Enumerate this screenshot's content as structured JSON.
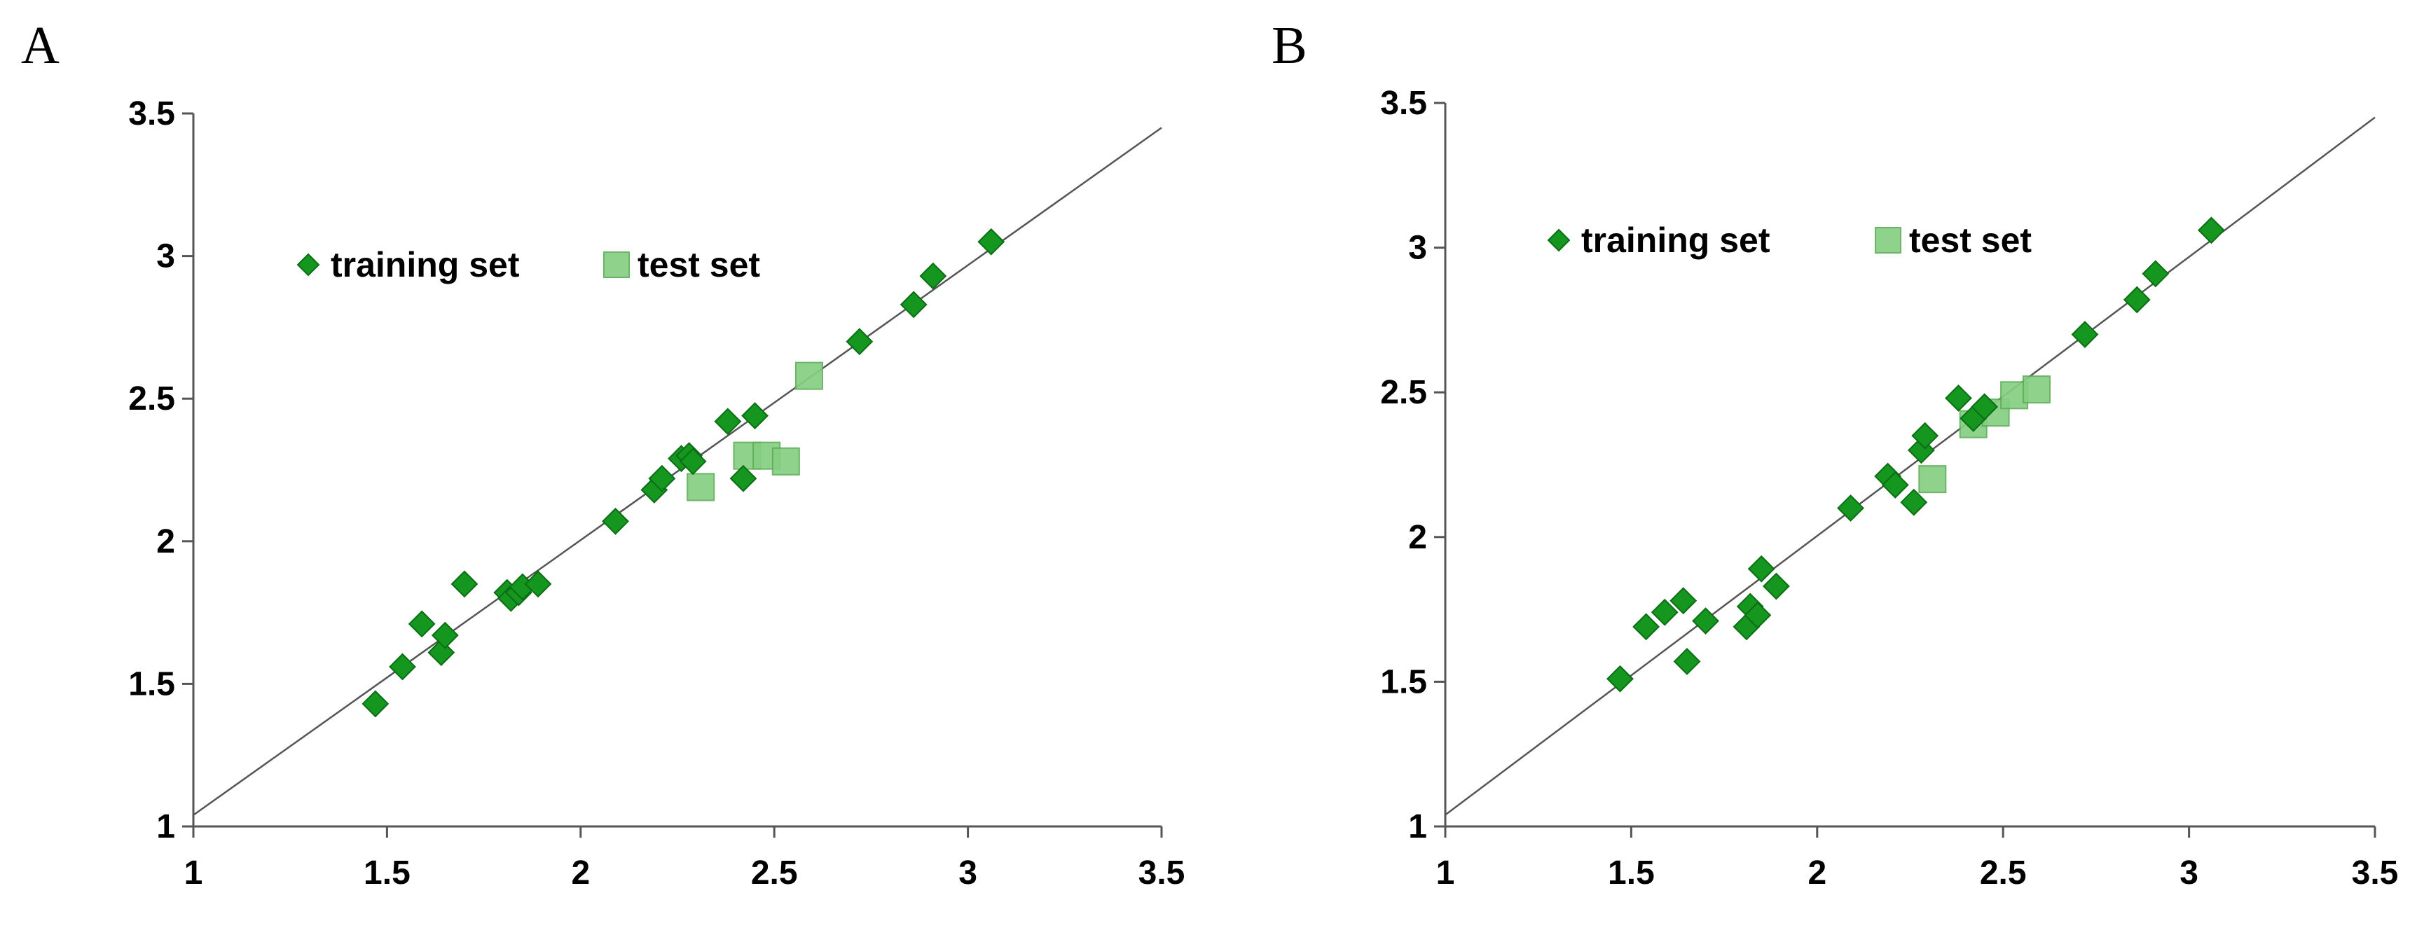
{
  "colors": {
    "training": "#15961f",
    "training_dark": "#0b6e14",
    "test": "#86cf82",
    "test_dark": "#5fae5c",
    "axis": "#555555",
    "fit_line": "#555555"
  },
  "icons": {
    "training": "diamond-icon",
    "test": "square-icon"
  },
  "chart_data": [
    {
      "panel_label": "A",
      "type": "scatter",
      "title": "",
      "xlabel": "",
      "ylabel": "",
      "xlim": [
        1,
        3.5
      ],
      "ylim": [
        1,
        3.5
      ],
      "xticks": [
        "1",
        "1.5",
        "2",
        "2.5",
        "3",
        "3.5"
      ],
      "yticks": [
        "1",
        "1.5",
        "2",
        "2.5",
        "3",
        "3.5"
      ],
      "grid": false,
      "legend_position": "upper-left",
      "reference_line": {
        "x": [
          1,
          3.5
        ],
        "y": [
          1.04,
          3.45
        ]
      },
      "series": [
        {
          "name": "training set",
          "marker": "diamond",
          "points": [
            [
              1.47,
              1.43
            ],
            [
              1.54,
              1.56
            ],
            [
              1.59,
              1.71
            ],
            [
              1.64,
              1.61
            ],
            [
              1.65,
              1.67
            ],
            [
              1.7,
              1.85
            ],
            [
              1.81,
              1.82
            ],
            [
              1.82,
              1.8
            ],
            [
              1.84,
              1.82
            ],
            [
              1.85,
              1.84
            ],
            [
              1.89,
              1.85
            ],
            [
              2.09,
              2.07
            ],
            [
              2.19,
              2.18
            ],
            [
              2.21,
              2.22
            ],
            [
              2.26,
              2.29
            ],
            [
              2.28,
              2.3
            ],
            [
              2.29,
              2.28
            ],
            [
              2.38,
              2.42
            ],
            [
              2.42,
              2.22
            ],
            [
              2.45,
              2.44
            ],
            [
              2.72,
              2.7
            ],
            [
              2.86,
              2.83
            ],
            [
              2.91,
              2.93
            ],
            [
              3.06,
              3.05
            ]
          ]
        },
        {
          "name": "test set",
          "marker": "square",
          "points": [
            [
              2.31,
              2.19
            ],
            [
              2.43,
              2.3
            ],
            [
              2.48,
              2.3
            ],
            [
              2.53,
              2.28
            ],
            [
              2.59,
              2.58
            ]
          ]
        }
      ]
    },
    {
      "panel_label": "B",
      "type": "scatter",
      "title": "",
      "xlabel": "",
      "ylabel": "",
      "xlim": [
        1,
        3.5
      ],
      "ylim": [
        1,
        3.5
      ],
      "xticks": [
        "1",
        "1.5",
        "2",
        "2.5",
        "3",
        "3.5"
      ],
      "yticks": [
        "1",
        "1.5",
        "2",
        "2.5",
        "3",
        "3.5"
      ],
      "grid": false,
      "legend_position": "upper-left",
      "reference_line": {
        "x": [
          1,
          3.5
        ],
        "y": [
          1.04,
          3.45
        ]
      },
      "series": [
        {
          "name": "training set",
          "marker": "diamond",
          "points": [
            [
              1.47,
              1.51
            ],
            [
              1.54,
              1.69
            ],
            [
              1.59,
              1.74
            ],
            [
              1.64,
              1.78
            ],
            [
              1.65,
              1.57
            ],
            [
              1.7,
              1.71
            ],
            [
              1.81,
              1.69
            ],
            [
              1.82,
              1.76
            ],
            [
              1.84,
              1.73
            ],
            [
              1.85,
              1.89
            ],
            [
              1.89,
              1.83
            ],
            [
              2.09,
              2.1
            ],
            [
              2.19,
              2.21
            ],
            [
              2.21,
              2.18
            ],
            [
              2.26,
              2.12
            ],
            [
              2.28,
              2.3
            ],
            [
              2.29,
              2.35
            ],
            [
              2.38,
              2.48
            ],
            [
              2.42,
              2.41
            ],
            [
              2.45,
              2.45
            ],
            [
              2.72,
              2.7
            ],
            [
              2.86,
              2.82
            ],
            [
              2.91,
              2.91
            ],
            [
              3.06,
              3.06
            ]
          ]
        },
        {
          "name": "test set",
          "marker": "square",
          "points": [
            [
              2.31,
              2.2
            ],
            [
              2.42,
              2.39
            ],
            [
              2.48,
              2.43
            ],
            [
              2.53,
              2.49
            ],
            [
              2.59,
              2.51
            ]
          ]
        }
      ]
    }
  ]
}
